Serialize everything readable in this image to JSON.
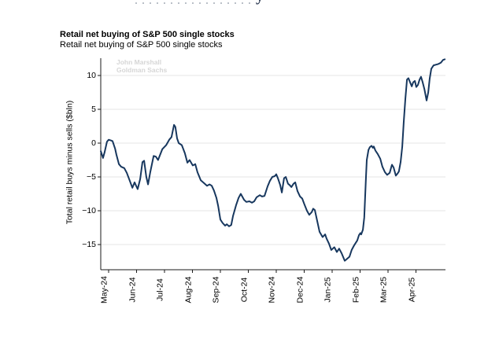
{
  "page": {
    "background": "#ffffff",
    "top_remnant_glyph": "y"
  },
  "header": {
    "title": "Retail net buying of S&P 500 single stocks",
    "subtitle": "Retail net buying of S&P 500 single stocks"
  },
  "watermark": {
    "line1": "John Marshall",
    "line2": "Goldman Sachs",
    "color": "#d6d6d6"
  },
  "chart_data": {
    "type": "line",
    "title": "Retail net buying of S&P 500 single stocks",
    "xlabel": "",
    "ylabel": "Total retail buys minus sells ($bln)",
    "x_unit": "months since May-2024 tick",
    "x_tick_labels": [
      "May-24",
      "Jun-24",
      "Jul-24",
      "Aug-24",
      "Sep-24",
      "Oct-24",
      "Nov-24",
      "Dec-24",
      "Jan-25",
      "Feb-25",
      "Mar-25",
      "Apr-25"
    ],
    "y_ticks": [
      {
        "value": 10,
        "label": "10"
      },
      {
        "value": 5,
        "label": "5"
      },
      {
        "value": 0,
        "label": "0"
      },
      {
        "value": -5,
        "label": "−5"
      },
      {
        "value": -10,
        "label": "−10"
      },
      {
        "value": -15,
        "label": "−15"
      }
    ],
    "ylim": [
      -18.7,
      12.6
    ],
    "xlim_months": [
      -0.28,
      12.06
    ],
    "grid": "horizontal",
    "legend": "none",
    "colors": {
      "line": "#17375e",
      "grid": "#e4e4e4",
      "axis": "#1a1a1a"
    },
    "series": [
      {
        "name": "Retail net buying of S&P 500 single stocks",
        "points": [
          [
            -0.28,
            -1.2
          ],
          [
            -0.2,
            -2.2
          ],
          [
            -0.14,
            -1.3
          ],
          [
            -0.06,
            0.2
          ],
          [
            0.0,
            0.5
          ],
          [
            0.08,
            0.4
          ],
          [
            0.14,
            0.3
          ],
          [
            0.23,
            -0.8
          ],
          [
            0.28,
            -1.7
          ],
          [
            0.37,
            -3.1
          ],
          [
            0.45,
            -3.5
          ],
          [
            0.56,
            -3.7
          ],
          [
            0.65,
            -4.4
          ],
          [
            0.76,
            -5.6
          ],
          [
            0.85,
            -6.6
          ],
          [
            0.93,
            -5.8
          ],
          [
            1.04,
            -6.8
          ],
          [
            1.13,
            -5.3
          ],
          [
            1.21,
            -2.8
          ],
          [
            1.27,
            -2.6
          ],
          [
            1.35,
            -5.0
          ],
          [
            1.41,
            -6.1
          ],
          [
            1.49,
            -4.3
          ],
          [
            1.61,
            -1.9
          ],
          [
            1.69,
            -2.0
          ],
          [
            1.77,
            -2.5
          ],
          [
            1.92,
            -0.9
          ],
          [
            2.06,
            -0.3
          ],
          [
            2.17,
            0.5
          ],
          [
            2.25,
            0.9
          ],
          [
            2.34,
            2.7
          ],
          [
            2.39,
            2.4
          ],
          [
            2.45,
            0.7
          ],
          [
            2.51,
            0.0
          ],
          [
            2.62,
            -0.3
          ],
          [
            2.73,
            -1.5
          ],
          [
            2.82,
            -2.9
          ],
          [
            2.9,
            -2.5
          ],
          [
            3.01,
            -3.3
          ],
          [
            3.1,
            -3.1
          ],
          [
            3.18,
            -4.3
          ],
          [
            3.3,
            -5.5
          ],
          [
            3.41,
            -5.9
          ],
          [
            3.52,
            -6.3
          ],
          [
            3.61,
            -6.1
          ],
          [
            3.69,
            -6.3
          ],
          [
            3.77,
            -7.0
          ],
          [
            3.86,
            -8.1
          ],
          [
            3.92,
            -9.3
          ],
          [
            4.0,
            -11.3
          ],
          [
            4.08,
            -11.8
          ],
          [
            4.17,
            -12.2
          ],
          [
            4.23,
            -12.0
          ],
          [
            4.31,
            -12.3
          ],
          [
            4.39,
            -12.1
          ],
          [
            4.45,
            -10.8
          ],
          [
            4.56,
            -9.2
          ],
          [
            4.65,
            -8.1
          ],
          [
            4.73,
            -7.5
          ],
          [
            4.85,
            -8.4
          ],
          [
            4.93,
            -8.7
          ],
          [
            5.04,
            -8.6
          ],
          [
            5.13,
            -8.8
          ],
          [
            5.21,
            -8.6
          ],
          [
            5.3,
            -8.0
          ],
          [
            5.41,
            -7.7
          ],
          [
            5.49,
            -7.9
          ],
          [
            5.58,
            -7.8
          ],
          [
            5.69,
            -6.4
          ],
          [
            5.77,
            -5.6
          ],
          [
            5.86,
            -5.0
          ],
          [
            5.94,
            -4.9
          ],
          [
            6.0,
            -4.6
          ],
          [
            6.06,
            -5.2
          ],
          [
            6.14,
            -6.2
          ],
          [
            6.2,
            -7.3
          ],
          [
            6.28,
            -5.2
          ],
          [
            6.34,
            -5.0
          ],
          [
            6.42,
            -6.0
          ],
          [
            6.48,
            -6.2
          ],
          [
            6.54,
            -6.5
          ],
          [
            6.62,
            -6.0
          ],
          [
            6.68,
            -5.8
          ],
          [
            6.76,
            -7.1
          ],
          [
            6.85,
            -7.9
          ],
          [
            6.93,
            -8.2
          ],
          [
            7.01,
            -9.1
          ],
          [
            7.1,
            -10.0
          ],
          [
            7.18,
            -10.6
          ],
          [
            7.27,
            -10.2
          ],
          [
            7.32,
            -9.7
          ],
          [
            7.38,
            -9.9
          ],
          [
            7.46,
            -11.4
          ],
          [
            7.55,
            -13.1
          ],
          [
            7.66,
            -13.9
          ],
          [
            7.75,
            -13.5
          ],
          [
            7.8,
            -14.1
          ],
          [
            7.89,
            -14.9
          ],
          [
            7.97,
            -15.8
          ],
          [
            8.08,
            -15.4
          ],
          [
            8.17,
            -16.1
          ],
          [
            8.25,
            -15.6
          ],
          [
            8.34,
            -16.3
          ],
          [
            8.45,
            -17.4
          ],
          [
            8.51,
            -17.2
          ],
          [
            8.62,
            -16.8
          ],
          [
            8.7,
            -15.8
          ],
          [
            8.79,
            -15.1
          ],
          [
            8.9,
            -14.4
          ],
          [
            8.96,
            -13.6
          ],
          [
            9.01,
            -13.3
          ],
          [
            9.04,
            -13.5
          ],
          [
            9.1,
            -12.8
          ],
          [
            9.15,
            -11.0
          ],
          [
            9.18,
            -8.0
          ],
          [
            9.21,
            -5.0
          ],
          [
            9.24,
            -2.5
          ],
          [
            9.3,
            -1.0
          ],
          [
            9.35,
            -0.6
          ],
          [
            9.41,
            -0.4
          ],
          [
            9.46,
            -0.7
          ],
          [
            9.49,
            -0.5
          ],
          [
            9.55,
            -1.1
          ],
          [
            9.63,
            -1.6
          ],
          [
            9.72,
            -2.3
          ],
          [
            9.8,
            -3.5
          ],
          [
            9.89,
            -4.3
          ],
          [
            9.97,
            -4.7
          ],
          [
            10.06,
            -4.4
          ],
          [
            10.14,
            -3.2
          ],
          [
            10.2,
            -3.6
          ],
          [
            10.28,
            -4.8
          ],
          [
            10.34,
            -4.5
          ],
          [
            10.39,
            -4.2
          ],
          [
            10.45,
            -2.8
          ],
          [
            10.51,
            -0.5
          ],
          [
            10.56,
            3.0
          ],
          [
            10.62,
            6.5
          ],
          [
            10.68,
            9.4
          ],
          [
            10.73,
            9.6
          ],
          [
            10.79,
            9.0
          ],
          [
            10.85,
            8.4
          ],
          [
            10.9,
            9.0
          ],
          [
            10.96,
            9.2
          ],
          [
            11.01,
            8.3
          ],
          [
            11.07,
            8.6
          ],
          [
            11.13,
            9.4
          ],
          [
            11.18,
            9.8
          ],
          [
            11.24,
            9.0
          ],
          [
            11.3,
            8.0
          ],
          [
            11.38,
            6.3
          ],
          [
            11.44,
            7.5
          ],
          [
            11.49,
            9.5
          ],
          [
            11.55,
            11.0
          ],
          [
            11.63,
            11.5
          ],
          [
            11.72,
            11.6
          ],
          [
            11.8,
            11.7
          ],
          [
            11.89,
            11.9
          ],
          [
            11.97,
            12.3
          ],
          [
            12.03,
            12.4
          ]
        ]
      }
    ]
  }
}
